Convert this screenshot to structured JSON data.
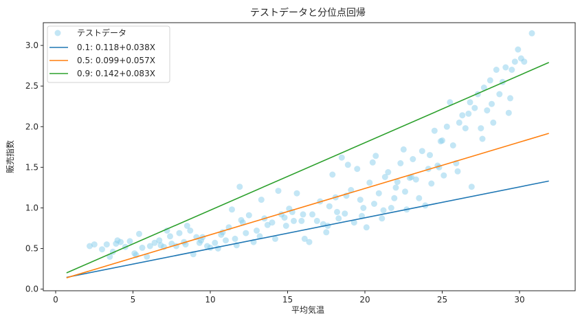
{
  "chart_data": {
    "type": "scatter",
    "title": "テストデータと分位点回帰",
    "xlabel": "平均気温",
    "ylabel": "販売指数",
    "xlim": [
      -0.8,
      33.6
    ],
    "ylim": [
      -0.02,
      3.28
    ],
    "xticks": [
      0,
      5,
      10,
      15,
      20,
      25,
      30
    ],
    "yticks": [
      0.0,
      0.5,
      1.0,
      1.5,
      2.0,
      2.5,
      3.0
    ],
    "xtick_labels": [
      "0",
      "5",
      "10",
      "15",
      "20",
      "25",
      "30"
    ],
    "ytick_labels": [
      "0.0",
      "0.5",
      "1.0",
      "1.5",
      "2.0",
      "2.5",
      "3.0"
    ],
    "grid": false,
    "legend_position": "top-left",
    "colors": {
      "scatter": "#87ceeb",
      "q01": "#1f77b4",
      "q05": "#ff7f0e",
      "q09": "#2ca02c"
    },
    "scatter": {
      "name": "テストデータ",
      "points": [
        [
          2.2,
          0.53
        ],
        [
          2.5,
          0.55
        ],
        [
          3.0,
          0.49
        ],
        [
          3.3,
          0.55
        ],
        [
          3.5,
          0.4
        ],
        [
          3.7,
          0.46
        ],
        [
          3.9,
          0.56
        ],
        [
          4.2,
          0.58
        ],
        [
          4.5,
          0.52
        ],
        [
          4.8,
          0.59
        ],
        [
          5.1,
          0.44
        ],
        [
          5.4,
          0.68
        ],
        [
          5.6,
          0.51
        ],
        [
          5.9,
          0.4
        ],
        [
          6.1,
          0.53
        ],
        [
          6.4,
          0.57
        ],
        [
          6.7,
          0.6
        ],
        [
          7.0,
          0.52
        ],
        [
          7.2,
          0.72
        ],
        [
          7.5,
          0.56
        ],
        [
          7.8,
          0.53
        ],
        [
          8.0,
          0.69
        ],
        [
          8.3,
          0.58
        ],
        [
          8.5,
          0.78
        ],
        [
          8.7,
          0.72
        ],
        [
          8.9,
          0.43
        ],
        [
          9.1,
          0.64
        ],
        [
          9.3,
          0.57
        ],
        [
          9.5,
          0.64
        ],
        [
          9.8,
          0.53
        ],
        [
          10.0,
          0.51
        ],
        [
          10.3,
          0.57
        ],
        [
          10.5,
          0.5
        ],
        [
          10.7,
          0.67
        ],
        [
          11.0,
          0.6
        ],
        [
          11.2,
          0.76
        ],
        [
          11.4,
          0.98
        ],
        [
          11.7,
          0.54
        ],
        [
          11.9,
          1.26
        ],
        [
          12.1,
          0.82
        ],
        [
          12.3,
          0.69
        ],
        [
          12.5,
          0.91
        ],
        [
          12.8,
          0.58
        ],
        [
          13.0,
          0.72
        ],
        [
          13.2,
          0.65
        ],
        [
          13.5,
          0.87
        ],
        [
          13.7,
          0.79
        ],
        [
          14.0,
          0.82
        ],
        [
          14.2,
          0.62
        ],
        [
          14.4,
          1.21
        ],
        [
          14.6,
          0.92
        ],
        [
          14.9,
          0.78
        ],
        [
          15.1,
          0.99
        ],
        [
          15.4,
          0.84
        ],
        [
          15.6,
          1.18
        ],
        [
          15.9,
          0.84
        ],
        [
          16.1,
          0.62
        ],
        [
          16.4,
          0.58
        ],
        [
          16.6,
          0.92
        ],
        [
          16.9,
          0.84
        ],
        [
          17.1,
          1.08
        ],
        [
          17.3,
          0.8
        ],
        [
          17.5,
          0.7
        ],
        [
          17.7,
          1.02
        ],
        [
          17.9,
          1.41
        ],
        [
          18.1,
          1.13
        ],
        [
          18.3,
          0.87
        ],
        [
          18.5,
          1.62
        ],
        [
          18.7,
          0.93
        ],
        [
          18.9,
          1.53
        ],
        [
          19.1,
          1.22
        ],
        [
          19.3,
          0.82
        ],
        [
          19.5,
          1.48
        ],
        [
          19.7,
          1.1
        ],
        [
          19.9,
          1.0
        ],
        [
          20.1,
          0.76
        ],
        [
          20.3,
          1.31
        ],
        [
          20.5,
          1.56
        ],
        [
          20.7,
          1.64
        ],
        [
          20.9,
          1.18
        ],
        [
          21.1,
          0.87
        ],
        [
          21.3,
          1.38
        ],
        [
          21.5,
          1.44
        ],
        [
          21.7,
          1.0
        ],
        [
          21.9,
          1.12
        ],
        [
          22.1,
          1.32
        ],
        [
          22.3,
          1.55
        ],
        [
          22.5,
          1.72
        ],
        [
          22.7,
          0.98
        ],
        [
          22.9,
          1.37
        ],
        [
          23.1,
          1.6
        ],
        [
          23.3,
          1.35
        ],
        [
          23.5,
          1.12
        ],
        [
          23.7,
          1.7
        ],
        [
          23.9,
          1.03
        ],
        [
          24.1,
          1.48
        ],
        [
          24.3,
          1.3
        ],
        [
          24.5,
          1.95
        ],
        [
          24.7,
          1.52
        ],
        [
          24.9,
          1.82
        ],
        [
          25.1,
          1.4
        ],
        [
          25.3,
          2.0
        ],
        [
          25.5,
          2.3
        ],
        [
          25.7,
          1.77
        ],
        [
          25.9,
          1.55
        ],
        [
          26.1,
          2.05
        ],
        [
          26.3,
          2.14
        ],
        [
          26.5,
          1.98
        ],
        [
          26.7,
          2.16
        ],
        [
          26.9,
          1.26
        ],
        [
          27.1,
          2.23
        ],
        [
          27.3,
          2.4
        ],
        [
          27.5,
          1.98
        ],
        [
          27.7,
          2.48
        ],
        [
          27.9,
          2.2
        ],
        [
          28.1,
          2.57
        ],
        [
          28.3,
          2.05
        ],
        [
          28.5,
          2.7
        ],
        [
          28.7,
          2.4
        ],
        [
          28.9,
          2.55
        ],
        [
          29.1,
          2.73
        ],
        [
          29.3,
          2.17
        ],
        [
          29.5,
          2.7
        ],
        [
          29.7,
          2.8
        ],
        [
          29.9,
          2.95
        ],
        [
          30.1,
          2.84
        ],
        [
          30.3,
          2.8
        ],
        [
          30.8,
          3.15
        ],
        [
          4.0,
          0.6
        ],
        [
          6.8,
          0.54
        ],
        [
          9.4,
          0.6
        ],
        [
          12.0,
          0.85
        ],
        [
          14.8,
          0.88
        ],
        [
          17.6,
          0.78
        ],
        [
          18.2,
          0.95
        ],
        [
          19.8,
          0.9
        ],
        [
          21.2,
          0.97
        ],
        [
          22.6,
          1.2
        ],
        [
          23.0,
          1.38
        ],
        [
          24.2,
          1.65
        ],
        [
          25.0,
          1.83
        ],
        [
          26.8,
          2.3
        ],
        [
          27.6,
          1.85
        ],
        [
          28.2,
          2.28
        ],
        [
          29.4,
          2.35
        ],
        [
          16.0,
          0.92
        ],
        [
          13.3,
          1.1
        ],
        [
          10.8,
          0.7
        ],
        [
          8.4,
          0.55
        ],
        [
          5.2,
          0.42
        ],
        [
          20.6,
          1.05
        ],
        [
          22.0,
          1.25
        ],
        [
          24.8,
          1.5
        ],
        [
          26.0,
          1.45
        ],
        [
          18.8,
          1.15
        ],
        [
          15.3,
          0.95
        ],
        [
          11.6,
          0.62
        ],
        [
          7.4,
          0.65
        ]
      ]
    },
    "series": [
      {
        "name": "0.1: 0.118+0.038X",
        "intercept": 0.118,
        "slope": 0.038,
        "x_range": [
          0.7,
          31.9
        ]
      },
      {
        "name": "0.5: 0.099+0.057X",
        "intercept": 0.099,
        "slope": 0.057,
        "x_range": [
          0.7,
          31.9
        ]
      },
      {
        "name": "0.9: 0.142+0.083X",
        "intercept": 0.142,
        "slope": 0.083,
        "x_range": [
          0.7,
          31.9
        ]
      }
    ]
  }
}
